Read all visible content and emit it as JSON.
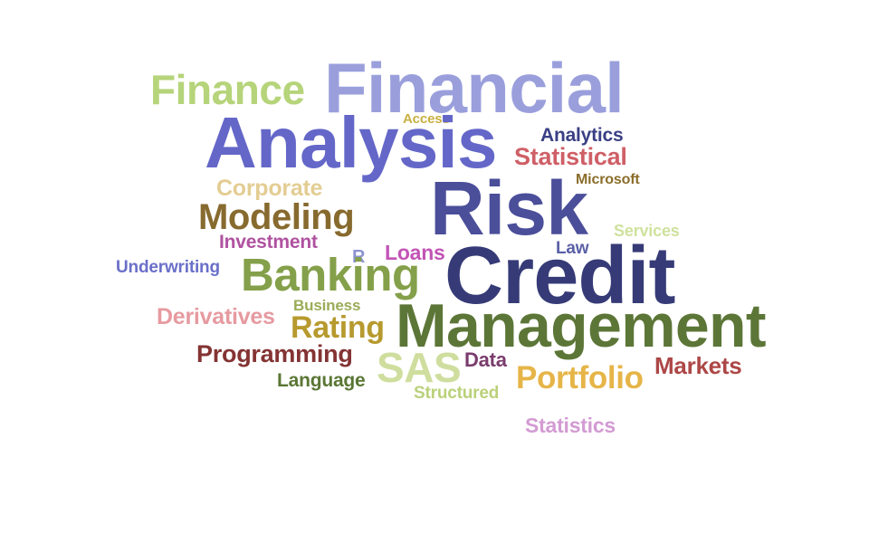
{
  "words": [
    {
      "text": "Financial",
      "color": "#9a9fdc"
    },
    {
      "text": "Finance",
      "color": "#b6d47a"
    },
    {
      "text": "Access",
      "color": "#c8b040"
    },
    {
      "text": "Analysis",
      "color": "#6467c8"
    },
    {
      "text": "Analytics",
      "color": "#3a3f84"
    },
    {
      "text": "Statistical",
      "color": "#cf5f67"
    },
    {
      "text": "Microsoft",
      "color": "#8a6d2a"
    },
    {
      "text": "Corporate",
      "color": "#e3cd93"
    },
    {
      "text": "Risk",
      "color": "#4b4e99"
    },
    {
      "text": "Modeling",
      "color": "#876a2e"
    },
    {
      "text": "Services",
      "color": "#cfe29d"
    },
    {
      "text": "Investment",
      "color": "#b052a0"
    },
    {
      "text": "Law",
      "color": "#5a5fa6"
    },
    {
      "text": "R",
      "color": "#8d93d2"
    },
    {
      "text": "Loans",
      "color": "#c254b6"
    },
    {
      "text": "Underwriting",
      "color": "#6a6fc9"
    },
    {
      "text": "Banking",
      "color": "#84a04a"
    },
    {
      "text": "Credit",
      "color": "#363b77"
    },
    {
      "text": "Business",
      "color": "#9aac57"
    },
    {
      "text": "Derivatives",
      "color": "#e69aa0"
    },
    {
      "text": "Rating",
      "color": "#b79a2e"
    },
    {
      "text": "Management",
      "color": "#5c7637"
    },
    {
      "text": "Programming",
      "color": "#843333"
    },
    {
      "text": "SAS",
      "color": "#cfde9e"
    },
    {
      "text": "Data",
      "color": "#7a3c6d"
    },
    {
      "text": "Markets",
      "color": "#ad4747"
    },
    {
      "text": "Language",
      "color": "#5a7634"
    },
    {
      "text": "Portfolio",
      "color": "#e6b548"
    },
    {
      "text": "Structured",
      "color": "#bad17a"
    },
    {
      "text": "Statistics",
      "color": "#d39bd3"
    }
  ]
}
